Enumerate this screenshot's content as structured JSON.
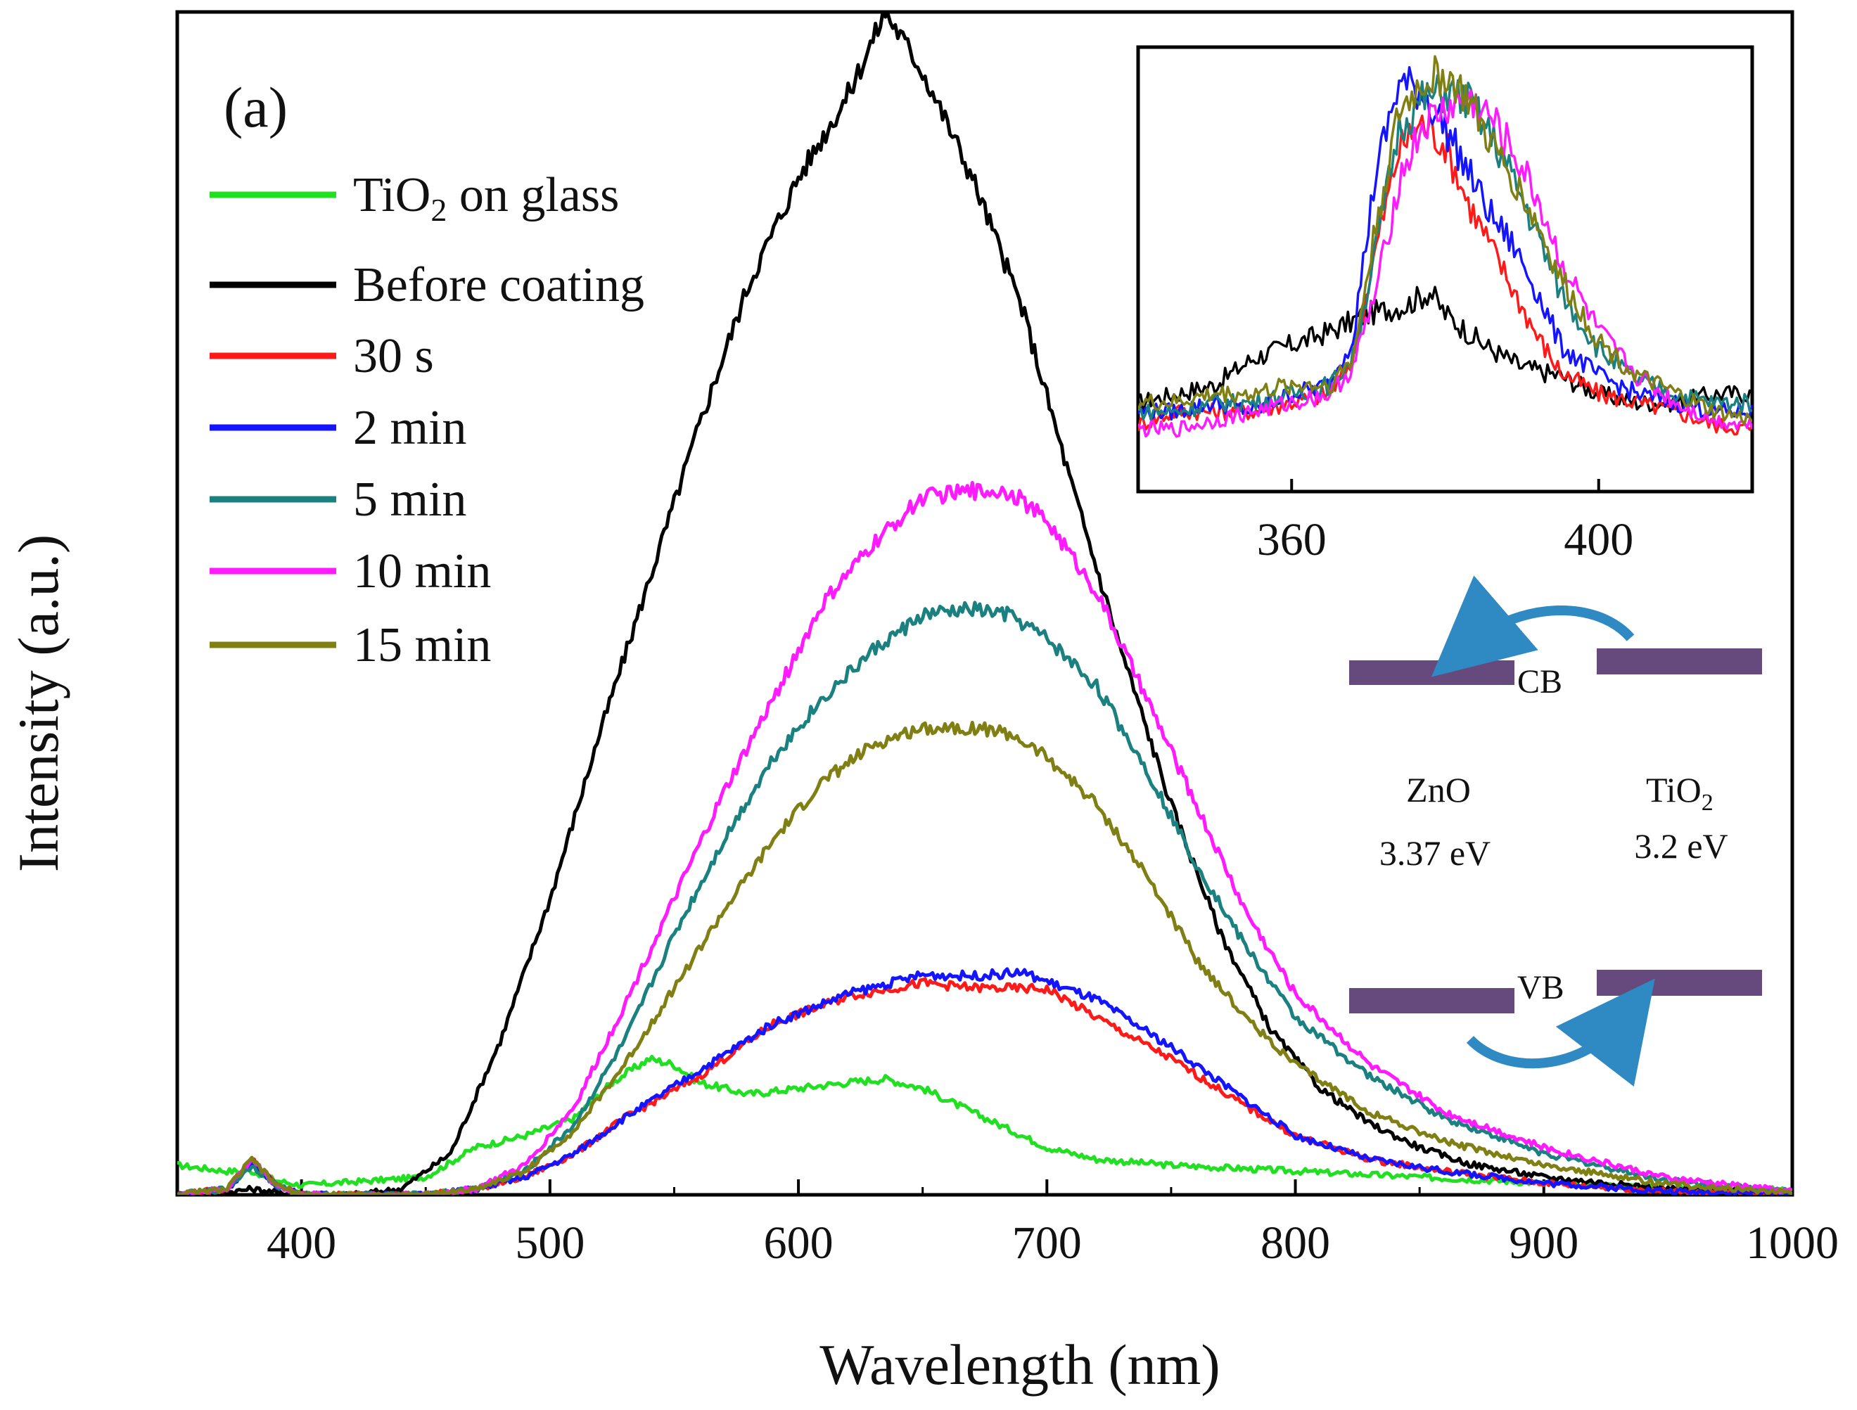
{
  "chart_data": [
    {
      "type": "line",
      "panel_label": "(a)",
      "xlabel": "Wavelength (nm)",
      "ylabel": "Intensity (a.u.)",
      "xlim": [
        350,
        1000
      ],
      "ylim": [
        0,
        100
      ],
      "x_ticks": [
        400,
        500,
        600,
        700,
        800,
        900,
        1000
      ],
      "series": [
        {
          "name": "TiO2 on glass",
          "label_main": "TiO",
          "label_sub": "2",
          "label_rest": " on glass",
          "color": "#21e021",
          "x": [
            350,
            370,
            380,
            390,
            400,
            450,
            470,
            490,
            510,
            525,
            540,
            550,
            560,
            580,
            600,
            620,
            635,
            650,
            660,
            680,
            700,
            720,
            750,
            800,
            850,
            900,
            950,
            1000
          ],
          "y": [
            2.5,
            2.0,
            2.0,
            1.2,
            0.8,
            1.5,
            4.0,
            5.0,
            6.5,
            9.5,
            11.5,
            11.0,
            9.5,
            8.5,
            9.0,
            9.5,
            9.8,
            9.0,
            8.0,
            6.0,
            4.0,
            3.0,
            2.5,
            2.0,
            1.5,
            1.0,
            0.6,
            0.4
          ]
        },
        {
          "name": "Before coating",
          "label_main": "Before coating",
          "label_sub": "",
          "label_rest": "",
          "color": "#000000",
          "x": [
            350,
            370,
            380,
            390,
            400,
            420,
            440,
            460,
            480,
            500,
            520,
            540,
            560,
            580,
            600,
            620,
            635,
            650,
            670,
            690,
            710,
            730,
            750,
            770,
            790,
            810,
            830,
            850,
            870,
            900,
            950,
            1000
          ],
          "y": [
            0,
            0.2,
            0.5,
            0.2,
            0,
            0,
            0.5,
            3.5,
            13,
            25,
            39,
            52,
            65,
            77,
            86,
            93,
            100,
            95,
            86,
            75,
            60,
            46,
            33,
            22,
            14,
            9,
            6,
            4,
            2.6,
            1.5,
            0.5,
            0.2
          ]
        },
        {
          "name": "30 s",
          "label_main": "30 s",
          "label_sub": "",
          "label_rest": "",
          "color": "#ff1a1a",
          "x": [
            350,
            370,
            380,
            390,
            400,
            450,
            470,
            490,
            510,
            530,
            560,
            590,
            620,
            650,
            670,
            700,
            720,
            750,
            780,
            800,
            830,
            860,
            900,
            950,
            1000
          ],
          "y": [
            0,
            0.5,
            3,
            0.8,
            0,
            0,
            0.5,
            1.5,
            3.5,
            6.5,
            10,
            14.5,
            16.8,
            17.9,
            17.5,
            17.4,
            15,
            11.5,
            7.5,
            5,
            3,
            2,
            1,
            0.3,
            0.1
          ]
        },
        {
          "name": "2 min",
          "label_main": "2 min",
          "label_sub": "",
          "label_rest": "",
          "color": "#1414ff",
          "x": [
            350,
            370,
            380,
            390,
            400,
            450,
            470,
            490,
            510,
            530,
            560,
            590,
            620,
            650,
            670,
            690,
            720,
            750,
            780,
            800,
            830,
            860,
            900,
            950,
            1000
          ],
          "y": [
            0,
            0.5,
            2.5,
            0.8,
            0,
            0,
            0.5,
            1.5,
            3.5,
            6.5,
            10.5,
            14.5,
            17,
            18.6,
            18.5,
            18.8,
            16.5,
            12.5,
            8,
            5,
            3,
            2,
            1,
            0.3,
            0.1
          ]
        },
        {
          "name": "5 min",
          "label_main": "5 min",
          "label_sub": "",
          "label_rest": "",
          "color": "#1a8080",
          "x": [
            350,
            370,
            380,
            390,
            400,
            450,
            470,
            490,
            510,
            530,
            550,
            570,
            590,
            610,
            630,
            650,
            670,
            685,
            700,
            720,
            740,
            760,
            780,
            800,
            830,
            860,
            900,
            950,
            1000
          ],
          "y": [
            0,
            0.5,
            2.5,
            0.8,
            0,
            0,
            0.5,
            2,
            6,
            13,
            22,
            30,
            37,
            42,
            46,
            49,
            49.5,
            49,
            47,
            43,
            36,
            28,
            21,
            15,
            10,
            6.5,
            3.5,
            1.2,
            0.3
          ]
        },
        {
          "name": "10 min",
          "label_main": "10 min",
          "label_sub": "",
          "label_rest": "",
          "color": "#ff1aff",
          "x": [
            350,
            370,
            380,
            390,
            400,
            450,
            470,
            490,
            510,
            530,
            550,
            570,
            590,
            610,
            630,
            650,
            670,
            685,
            700,
            720,
            740,
            760,
            780,
            800,
            830,
            860,
            900,
            950,
            1000
          ],
          "y": [
            0,
            0.5,
            3,
            0.8,
            0,
            0,
            0.5,
            2.5,
            7.5,
            16,
            25,
            34,
            42,
            50,
            55,
            59,
            59.5,
            59.5,
            57,
            51,
            42,
            33,
            24,
            17,
            11,
            7,
            4,
            1.4,
            0.3
          ]
        },
        {
          "name": "15 min",
          "label_main": "15 min",
          "label_sub": "",
          "label_rest": "",
          "color": "#7f7f14",
          "x": [
            350,
            370,
            380,
            390,
            400,
            450,
            470,
            490,
            510,
            530,
            550,
            570,
            590,
            610,
            630,
            650,
            670,
            685,
            700,
            720,
            740,
            760,
            780,
            800,
            830,
            860,
            900,
            950,
            1000
          ],
          "y": [
            0,
            0.5,
            3,
            0.8,
            0,
            0,
            0.5,
            2,
            5.5,
            11,
            17.5,
            24,
            30,
            35,
            38,
            39.5,
            39.5,
            39,
            37,
            33,
            27,
            20,
            15,
            11,
            7,
            4.5,
            2.5,
            0.9,
            0.2
          ]
        }
      ]
    },
    {
      "type": "line",
      "role": "inset",
      "xlabel": "",
      "ylabel": "",
      "xlim": [
        340,
        420
      ],
      "ylim": [
        0,
        100
      ],
      "x_ticks": [
        360,
        400
      ],
      "series": [
        {
          "name": "Before coating",
          "color": "#000000",
          "x": [
            340,
            345,
            350,
            355,
            360,
            365,
            370,
            375,
            378,
            380,
            385,
            390,
            395,
            400,
            405,
            410,
            415,
            420
          ],
          "y": [
            20,
            22,
            24,
            30,
            33,
            36,
            40,
            42,
            45,
            40,
            33,
            28,
            26,
            22,
            20,
            20,
            22,
            22
          ]
        },
        {
          "name": "30 s",
          "color": "#ff1a1a",
          "x": [
            340,
            345,
            350,
            355,
            360,
            365,
            368,
            371,
            374,
            377,
            380,
            383,
            386,
            389,
            392,
            395,
            400,
            405,
            410,
            415,
            420
          ],
          "y": [
            15,
            18,
            18,
            18,
            20,
            22,
            30,
            55,
            77,
            83,
            78,
            65,
            55,
            45,
            35,
            27,
            22,
            20,
            18,
            15,
            14
          ]
        },
        {
          "name": "2 min",
          "color": "#1414ff",
          "x": [
            340,
            345,
            350,
            355,
            360,
            365,
            368,
            371,
            374,
            377,
            380,
            383,
            386,
            389,
            392,
            395,
            400,
            405,
            410,
            415,
            420
          ],
          "y": [
            18,
            18,
            20,
            18,
            22,
            24,
            35,
            72,
            92,
            90,
            82,
            72,
            62,
            55,
            45,
            33,
            26,
            22,
            20,
            18,
            18
          ]
        },
        {
          "name": "5 min",
          "color": "#1a8080",
          "x": [
            340,
            345,
            350,
            355,
            360,
            365,
            368,
            371,
            374,
            377,
            380,
            383,
            386,
            389,
            392,
            395,
            400,
            405,
            410,
            415,
            420
          ],
          "y": [
            18,
            18,
            20,
            20,
            22,
            24,
            30,
            55,
            82,
            88,
            90,
            88,
            80,
            70,
            58,
            45,
            32,
            25,
            22,
            20,
            20
          ]
        },
        {
          "name": "10 min",
          "color": "#ff1aff",
          "x": [
            340,
            345,
            350,
            355,
            360,
            365,
            368,
            371,
            374,
            377,
            380,
            383,
            386,
            389,
            392,
            395,
            400,
            405,
            410,
            415,
            420
          ],
          "y": [
            14,
            14,
            16,
            18,
            20,
            22,
            28,
            45,
            70,
            82,
            86,
            88,
            84,
            76,
            66,
            52,
            36,
            26,
            20,
            16,
            15
          ]
        },
        {
          "name": "15 min",
          "color": "#7f7f14",
          "x": [
            340,
            345,
            350,
            355,
            360,
            365,
            368,
            371,
            374,
            377,
            380,
            383,
            386,
            389,
            392,
            395,
            400,
            405,
            410,
            415,
            420
          ],
          "y": [
            20,
            20,
            22,
            22,
            24,
            24,
            30,
            60,
            85,
            92,
            94,
            88,
            78,
            70,
            60,
            48,
            34,
            26,
            22,
            18,
            16
          ]
        }
      ]
    }
  ],
  "band_diagram": {
    "cb_label": "CB",
    "vb_label": "VB",
    "zno_label": "ZnO",
    "zno_gap": "3.37 eV",
    "tio2_main": "TiO",
    "tio2_sub": "2",
    "tio2_gap": "3.2 eV",
    "bar_color": "#664a7d",
    "arrow_color": "#2f8ac4"
  }
}
